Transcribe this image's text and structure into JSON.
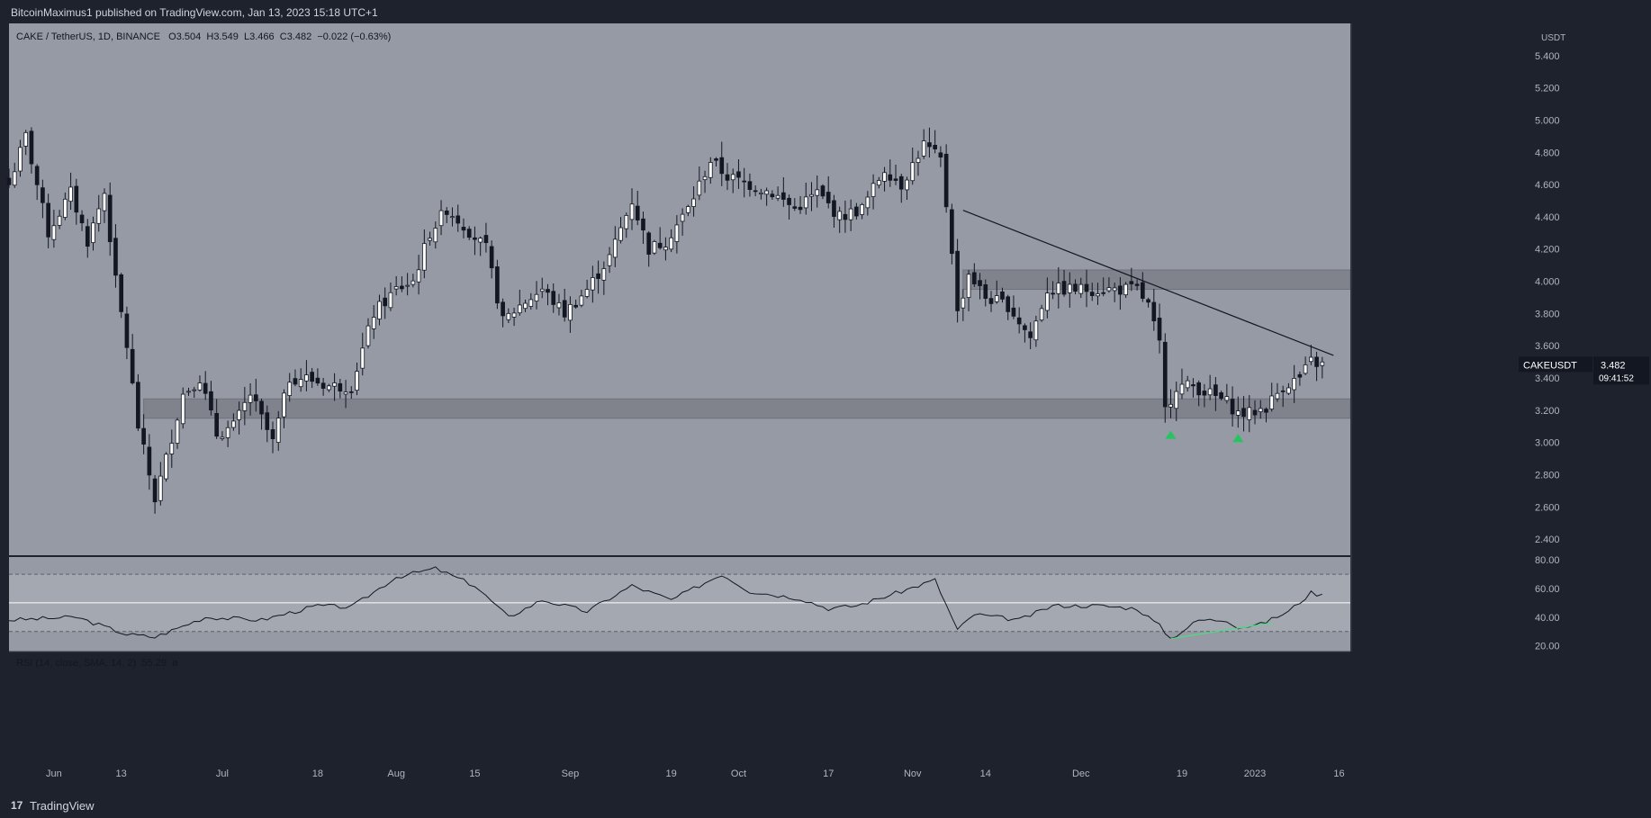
{
  "header": {
    "publisher_line": "BitcoinMaximus1 published on TradingView.com, Jan 13, 2023 15:18 UTC+1"
  },
  "footer": {
    "logo_glyph": "17",
    "brand": "TradingView"
  },
  "legend": {
    "symbol": "CAKE / TetherUS, 1D, BINANCE",
    "o_label": "O",
    "o_value": "3.504",
    "h_label": "H",
    "h_value": "3.549",
    "l_label": "L",
    "l_value": "3.466",
    "c_label": "C",
    "c_value": "3.482",
    "change": "−0.022 (−0.63%)"
  },
  "rsi_legend": {
    "text": "RSI (14, close, SMA, 14, 2)",
    "value": "55.29",
    "extra": "ø"
  },
  "price_tag": {
    "symbol": "CAKEUSDT",
    "price": "3.482",
    "countdown": "09:41:52"
  },
  "colors": {
    "background": "#1e222d",
    "pane": "#959aa4",
    "rsi_band": "#a3a8b1",
    "zone": "#80838c",
    "candle_up": "#ffffff",
    "candle_down": "#131722",
    "signal_arrow": "#22c55e",
    "divergence": "#4ade80"
  },
  "chart_data": {
    "type": "candlestick",
    "title": "CAKE / TetherUS, 1D, BINANCE",
    "y_unit": "USDT",
    "yticks": [
      "5.400",
      "5.200",
      "5.000",
      "4.800",
      "4.600",
      "4.400",
      "4.200",
      "4.000",
      "3.800",
      "3.600",
      "3.400",
      "3.200",
      "3.000",
      "2.800",
      "2.600",
      "2.400"
    ],
    "ylim": [
      2.3,
      5.6
    ],
    "x_range": [
      "2022-05-24",
      "2023-01-18"
    ],
    "xticks": [
      {
        "label": "Jun",
        "date": "2022-06-01"
      },
      {
        "label": "13",
        "date": "2022-06-13"
      },
      {
        "label": "Jul",
        "date": "2022-07-01"
      },
      {
        "label": "18",
        "date": "2022-07-18"
      },
      {
        "label": "Aug",
        "date": "2022-08-01"
      },
      {
        "label": "15",
        "date": "2022-08-15"
      },
      {
        "label": "Sep",
        "date": "2022-09-01"
      },
      {
        "label": "19",
        "date": "2022-09-19"
      },
      {
        "label": "Oct",
        "date": "2022-10-01"
      },
      {
        "label": "17",
        "date": "2022-10-17"
      },
      {
        "label": "Nov",
        "date": "2022-11-01"
      },
      {
        "label": "14",
        "date": "2022-11-14"
      },
      {
        "label": "Dec",
        "date": "2022-12-01"
      },
      {
        "label": "19",
        "date": "2022-12-19"
      },
      {
        "label": "2023",
        "date": "2023-01-01"
      },
      {
        "label": "16",
        "date": "2023-01-16"
      }
    ],
    "close_anchors": [
      [
        "2022-05-24",
        4.6
      ],
      [
        "2022-05-27",
        4.9
      ],
      [
        "2022-05-31",
        4.3
      ],
      [
        "2022-06-04",
        4.55
      ],
      [
        "2022-06-07",
        4.25
      ],
      [
        "2022-06-10",
        4.55
      ],
      [
        "2022-06-12",
        4.0
      ],
      [
        "2022-06-14",
        3.6
      ],
      [
        "2022-06-16",
        3.1
      ],
      [
        "2022-06-19",
        2.65
      ],
      [
        "2022-06-21",
        2.9
      ],
      [
        "2022-06-24",
        3.3
      ],
      [
        "2022-06-27",
        3.4
      ],
      [
        "2022-06-30",
        3.05
      ],
      [
        "2022-07-03",
        3.1
      ],
      [
        "2022-07-06",
        3.3
      ],
      [
        "2022-07-10",
        3.0
      ],
      [
        "2022-07-13",
        3.4
      ],
      [
        "2022-07-16",
        3.4
      ],
      [
        "2022-07-20",
        3.35
      ],
      [
        "2022-07-24",
        3.35
      ],
      [
        "2022-07-28",
        3.8
      ],
      [
        "2022-08-01",
        3.95
      ],
      [
        "2022-08-04",
        4.0
      ],
      [
        "2022-08-07",
        4.3
      ],
      [
        "2022-08-10",
        4.45
      ],
      [
        "2022-08-13",
        4.35
      ],
      [
        "2022-08-17",
        4.2
      ],
      [
        "2022-08-20",
        3.75
      ],
      [
        "2022-08-23",
        3.85
      ],
      [
        "2022-08-27",
        3.95
      ],
      [
        "2022-08-31",
        3.8
      ],
      [
        "2022-09-04",
        3.95
      ],
      [
        "2022-09-08",
        4.15
      ],
      [
        "2022-09-12",
        4.5
      ],
      [
        "2022-09-15",
        4.2
      ],
      [
        "2022-09-18",
        4.25
      ],
      [
        "2022-09-22",
        4.45
      ],
      [
        "2022-09-26",
        4.75
      ],
      [
        "2022-09-29",
        4.65
      ],
      [
        "2022-10-03",
        4.6
      ],
      [
        "2022-10-07",
        4.55
      ],
      [
        "2022-10-11",
        4.45
      ],
      [
        "2022-10-15",
        4.55
      ],
      [
        "2022-10-19",
        4.4
      ],
      [
        "2022-10-23",
        4.45
      ],
      [
        "2022-10-27",
        4.7
      ],
      [
        "2022-10-30",
        4.6
      ],
      [
        "2022-11-03",
        4.85
      ],
      [
        "2022-11-06",
        4.75
      ],
      [
        "2022-11-08",
        4.2
      ],
      [
        "2022-11-09",
        3.8
      ],
      [
        "2022-11-11",
        4.05
      ],
      [
        "2022-11-14",
        3.9
      ],
      [
        "2022-11-18",
        3.85
      ],
      [
        "2022-11-22",
        3.65
      ],
      [
        "2022-11-25",
        3.95
      ],
      [
        "2022-11-29",
        3.95
      ],
      [
        "2022-12-03",
        3.95
      ],
      [
        "2022-12-07",
        3.95
      ],
      [
        "2022-12-11",
        3.95
      ],
      [
        "2022-12-13",
        3.85
      ],
      [
        "2022-12-15",
        3.6
      ],
      [
        "2022-12-16",
        3.2
      ],
      [
        "2022-12-18",
        3.35
      ],
      [
        "2022-12-21",
        3.35
      ],
      [
        "2022-12-24",
        3.3
      ],
      [
        "2022-12-27",
        3.25
      ],
      [
        "2022-12-29",
        3.18
      ],
      [
        "2022-12-31",
        3.18
      ],
      [
        "2023-01-03",
        3.22
      ],
      [
        "2023-01-06",
        3.35
      ],
      [
        "2023-01-09",
        3.4
      ],
      [
        "2023-01-11",
        3.5
      ],
      [
        "2023-01-13",
        3.482
      ]
    ],
    "support_zones": [
      {
        "from": "2022-06-17",
        "to": "2023-01-18",
        "low": 3.15,
        "high": 3.27
      },
      {
        "from": "2022-11-10",
        "to": "2023-01-18",
        "low": 3.95,
        "high": 4.07
      }
    ],
    "resistance_line": {
      "start": [
        "2022-11-10",
        4.44
      ],
      "end": [
        "2023-01-15",
        3.54
      ]
    },
    "signal_markers": [
      {
        "date": "2022-12-17",
        "price": 3.05
      },
      {
        "date": "2022-12-29",
        "price": 3.03
      }
    ],
    "rsi": {
      "yticks": [
        "80.00",
        "60.00",
        "40.00",
        "20.00"
      ],
      "ylim": [
        16,
        82
      ],
      "bands": [
        70,
        50,
        30
      ],
      "anchors": [
        [
          "2022-05-24",
          38
        ],
        [
          "2022-06-05",
          40
        ],
        [
          "2022-06-14",
          28
        ],
        [
          "2022-06-19",
          26
        ],
        [
          "2022-06-28",
          40
        ],
        [
          "2022-07-08",
          38
        ],
        [
          "2022-07-18",
          48
        ],
        [
          "2022-07-24",
          47
        ],
        [
          "2022-08-01",
          68
        ],
        [
          "2022-08-08",
          74
        ],
        [
          "2022-08-15",
          62
        ],
        [
          "2022-08-21",
          40
        ],
        [
          "2022-08-27",
          52
        ],
        [
          "2022-09-04",
          44
        ],
        [
          "2022-09-12",
          62
        ],
        [
          "2022-09-19",
          52
        ],
        [
          "2022-09-28",
          70
        ],
        [
          "2022-10-03",
          58
        ],
        [
          "2022-10-12",
          53
        ],
        [
          "2022-10-17",
          46
        ],
        [
          "2022-10-22",
          48
        ],
        [
          "2022-10-30",
          58
        ],
        [
          "2022-11-05",
          66
        ],
        [
          "2022-11-09",
          31
        ],
        [
          "2022-11-12",
          42
        ],
        [
          "2022-11-20",
          38
        ],
        [
          "2022-11-26",
          48
        ],
        [
          "2022-12-04",
          48
        ],
        [
          "2022-12-11",
          46
        ],
        [
          "2022-12-15",
          34
        ],
        [
          "2022-12-17",
          25
        ],
        [
          "2022-12-22",
          38
        ],
        [
          "2022-12-27",
          38
        ],
        [
          "2022-12-29",
          33
        ],
        [
          "2023-01-02",
          35
        ],
        [
          "2023-01-07",
          44
        ],
        [
          "2023-01-11",
          57
        ],
        [
          "2023-01-13",
          55.29
        ]
      ],
      "divergence_line": {
        "start": [
          "2022-12-17",
          25
        ],
        "end": [
          "2023-01-04",
          36
        ]
      }
    }
  }
}
